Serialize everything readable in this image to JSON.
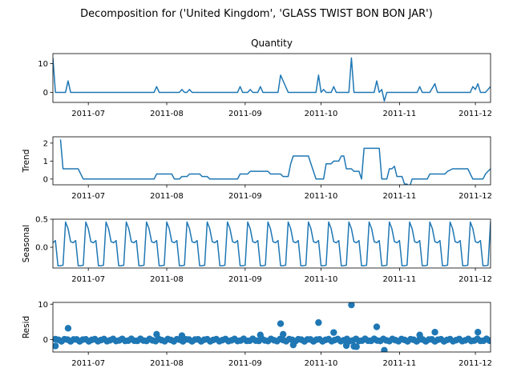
{
  "chart_data": {
    "type": "line",
    "title": "Decomposition for ('United Kingdom', 'GLASS TWIST BON BON JAR')",
    "x_range": [
      "2011-06-17",
      "2011-12-07"
    ],
    "x_ticks": [
      "2011-07",
      "2011-08",
      "2011-09",
      "2011-10",
      "2011-11",
      "2011-12"
    ],
    "colors": {
      "series": "#1f77b4",
      "axis": "#000000",
      "zero_line": "#000000"
    },
    "grid": false,
    "panels": [
      {
        "key": "quantity",
        "title": "Quantity",
        "ylabel": "",
        "kind": "line",
        "ylim": [
          -3.5,
          13.5
        ],
        "yticks": [
          0,
          10
        ],
        "points": [
          [
            "2011-06-17",
            12
          ],
          [
            "2011-06-18",
            0
          ],
          [
            "2011-06-22",
            0
          ],
          [
            "2011-06-23",
            4
          ],
          [
            "2011-06-24",
            0
          ],
          [
            "2011-07-27",
            0
          ],
          [
            "2011-07-28",
            2
          ],
          [
            "2011-07-29",
            0
          ],
          [
            "2011-08-06",
            0
          ],
          [
            "2011-08-07",
            1
          ],
          [
            "2011-08-08",
            0
          ],
          [
            "2011-08-09",
            0
          ],
          [
            "2011-08-10",
            1
          ],
          [
            "2011-08-11",
            0
          ],
          [
            "2011-08-29",
            0
          ],
          [
            "2011-08-30",
            2
          ],
          [
            "2011-08-31",
            0
          ],
          [
            "2011-09-02",
            0
          ],
          [
            "2011-09-03",
            1
          ],
          [
            "2011-09-04",
            0
          ],
          [
            "2011-09-06",
            0
          ],
          [
            "2011-09-07",
            2
          ],
          [
            "2011-09-08",
            0
          ],
          [
            "2011-09-14",
            0
          ],
          [
            "2011-09-15",
            6
          ],
          [
            "2011-09-17",
            2
          ],
          [
            "2011-09-18",
            0
          ],
          [
            "2011-09-29",
            0
          ],
          [
            "2011-09-30",
            6
          ],
          [
            "2011-10-01",
            0
          ],
          [
            "2011-10-02",
            1
          ],
          [
            "2011-10-03",
            0
          ],
          [
            "2011-10-05",
            0
          ],
          [
            "2011-10-06",
            2
          ],
          [
            "2011-10-07",
            0
          ],
          [
            "2011-10-12",
            0
          ],
          [
            "2011-10-13",
            12
          ],
          [
            "2011-10-14",
            0
          ],
          [
            "2011-10-22",
            0
          ],
          [
            "2011-10-23",
            4
          ],
          [
            "2011-10-24",
            0
          ],
          [
            "2011-10-25",
            1
          ],
          [
            "2011-10-26",
            -3
          ],
          [
            "2011-10-27",
            0
          ],
          [
            "2011-11-08",
            0
          ],
          [
            "2011-11-09",
            2
          ],
          [
            "2011-11-10",
            0
          ],
          [
            "2011-11-13",
            0
          ],
          [
            "2011-11-15",
            3
          ],
          [
            "2011-11-16",
            0
          ],
          [
            "2011-11-29",
            0
          ],
          [
            "2011-11-30",
            2
          ],
          [
            "2011-12-01",
            1
          ],
          [
            "2011-12-02",
            3
          ],
          [
            "2011-12-03",
            0
          ],
          [
            "2011-12-05",
            0
          ],
          [
            "2011-12-07",
            2
          ]
        ]
      },
      {
        "key": "trend",
        "title": "",
        "ylabel": "Trend",
        "kind": "line",
        "ylim": [
          -0.32,
          2.35
        ],
        "yticks": [
          0,
          1,
          2
        ],
        "points": [
          [
            "2011-06-20",
            2.2
          ],
          [
            "2011-06-21",
            0.57
          ],
          [
            "2011-06-27",
            0.57
          ],
          [
            "2011-06-29",
            0
          ],
          [
            "2011-07-27",
            0
          ],
          [
            "2011-07-28",
            0.28
          ],
          [
            "2011-08-03",
            0.28
          ],
          [
            "2011-08-04",
            0
          ],
          [
            "2011-08-06",
            0
          ],
          [
            "2011-08-07",
            0.14
          ],
          [
            "2011-08-09",
            0.14
          ],
          [
            "2011-08-10",
            0.28
          ],
          [
            "2011-08-14",
            0.28
          ],
          [
            "2011-08-15",
            0.14
          ],
          [
            "2011-08-17",
            0.14
          ],
          [
            "2011-08-18",
            0
          ],
          [
            "2011-08-29",
            0
          ],
          [
            "2011-08-30",
            0.28
          ],
          [
            "2011-09-02",
            0.28
          ],
          [
            "2011-09-03",
            0.43
          ],
          [
            "2011-09-10",
            0.43
          ],
          [
            "2011-09-11",
            0.28
          ],
          [
            "2011-09-15",
            0.28
          ],
          [
            "2011-09-16",
            0.14
          ],
          [
            "2011-09-18",
            0.14
          ],
          [
            "2011-09-19",
            0.85
          ],
          [
            "2011-09-20",
            1.28
          ],
          [
            "2011-09-26",
            1.28
          ],
          [
            "2011-09-27",
            0.85
          ],
          [
            "2011-09-28",
            0.43
          ],
          [
            "2011-09-29",
            0
          ],
          [
            "2011-10-02",
            0
          ],
          [
            "2011-10-03",
            0.85
          ],
          [
            "2011-10-05",
            0.85
          ],
          [
            "2011-10-06",
            1
          ],
          [
            "2011-10-08",
            1
          ],
          [
            "2011-10-09",
            1.28
          ],
          [
            "2011-10-10",
            1.28
          ],
          [
            "2011-10-11",
            0.57
          ],
          [
            "2011-10-13",
            0.57
          ],
          [
            "2011-10-14",
            0.43
          ],
          [
            "2011-10-16",
            0.43
          ],
          [
            "2011-10-17",
            0
          ],
          [
            "2011-10-18",
            1.71
          ],
          [
            "2011-10-24",
            1.71
          ],
          [
            "2011-10-25",
            0
          ],
          [
            "2011-10-27",
            0
          ],
          [
            "2011-10-28",
            0.57
          ],
          [
            "2011-10-29",
            0.57
          ],
          [
            "2011-10-30",
            0.71
          ],
          [
            "2011-10-31",
            0.14
          ],
          [
            "2011-11-02",
            0.14
          ],
          [
            "2011-11-03",
            -0.28
          ],
          [
            "2011-11-04",
            -0.28
          ],
          [
            "2011-11-05",
            -0.43
          ],
          [
            "2011-11-06",
            0
          ],
          [
            "2011-11-12",
            0
          ],
          [
            "2011-11-13",
            0.28
          ],
          [
            "2011-11-19",
            0.28
          ],
          [
            "2011-11-20",
            0.43
          ],
          [
            "2011-11-22",
            0.57
          ],
          [
            "2011-11-28",
            0.57
          ],
          [
            "2011-11-30",
            0
          ],
          [
            "2011-12-04",
            0
          ],
          [
            "2011-12-05",
            0.28
          ],
          [
            "2011-12-06",
            0.43
          ],
          [
            "2011-12-07",
            0.57
          ],
          [
            "2011-12-08",
            0.85
          ],
          [
            "2011-12-14",
            0.85
          ]
        ]
      },
      {
        "key": "seasonal",
        "title": "",
        "ylabel": "Seasonal",
        "kind": "periodic",
        "ylim": [
          -0.37,
          0.5
        ],
        "yticks": [
          0.0,
          0.5
        ],
        "start": "2011-06-17",
        "end": "2011-12-07",
        "pattern": [
          0.08,
          0.12,
          -0.33,
          -0.33,
          -0.32,
          0.45,
          0.33,
          0.1
        ]
      },
      {
        "key": "resid",
        "title": "",
        "ylabel": "Resid",
        "kind": "scatter",
        "ylim": [
          -3.5,
          10.5
        ],
        "yticks": [
          0,
          10
        ],
        "base": {
          "start": "2011-06-18",
          "end": "2011-12-07",
          "spacing_days": 1.2
        },
        "points": [
          [
            "2011-06-23",
            3.2
          ],
          [
            "2011-07-28",
            1.5
          ],
          [
            "2011-08-07",
            1.1
          ],
          [
            "2011-09-07",
            1.3
          ],
          [
            "2011-09-15",
            4.5
          ],
          [
            "2011-09-16",
            1.5
          ],
          [
            "2011-09-30",
            4.8
          ],
          [
            "2011-10-06",
            2.0
          ],
          [
            "2011-10-13",
            9.8
          ],
          [
            "2011-10-23",
            3.6
          ],
          [
            "2011-10-26",
            -3.0
          ],
          [
            "2011-11-09",
            1.3
          ],
          [
            "2011-11-15",
            2.1
          ],
          [
            "2011-12-02",
            2.1
          ],
          [
            "2011-06-18",
            -1.8
          ],
          [
            "2011-10-11",
            -1.7
          ],
          [
            "2011-10-14",
            -1.9
          ],
          [
            "2011-10-15",
            -2.0
          ],
          [
            "2011-09-20",
            -1.5
          ]
        ]
      }
    ]
  }
}
